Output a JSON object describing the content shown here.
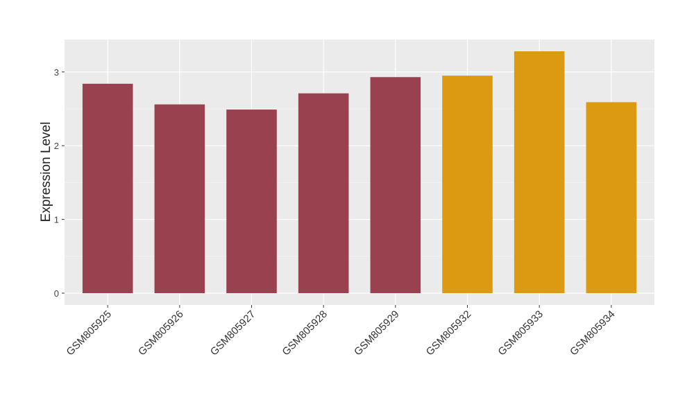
{
  "chart_data": {
    "type": "bar",
    "y_label": "Expression Level",
    "categories": [
      "GSM805925",
      "GSM805926",
      "GSM805927",
      "GSM805928",
      "GSM805929",
      "GSM805932",
      "GSM805933",
      "GSM805934"
    ],
    "values": [
      2.84,
      2.56,
      2.49,
      2.71,
      2.93,
      2.95,
      3.28,
      2.59
    ],
    "colors": [
      "#9a4150",
      "#9a4150",
      "#9a4150",
      "#9a4150",
      "#9a4150",
      "#dc9a13",
      "#dc9a13",
      "#dc9a13"
    ],
    "ylim": [
      -0.16,
      3.44
    ],
    "yticks": [
      0,
      1,
      2,
      3
    ],
    "grid": true
  }
}
